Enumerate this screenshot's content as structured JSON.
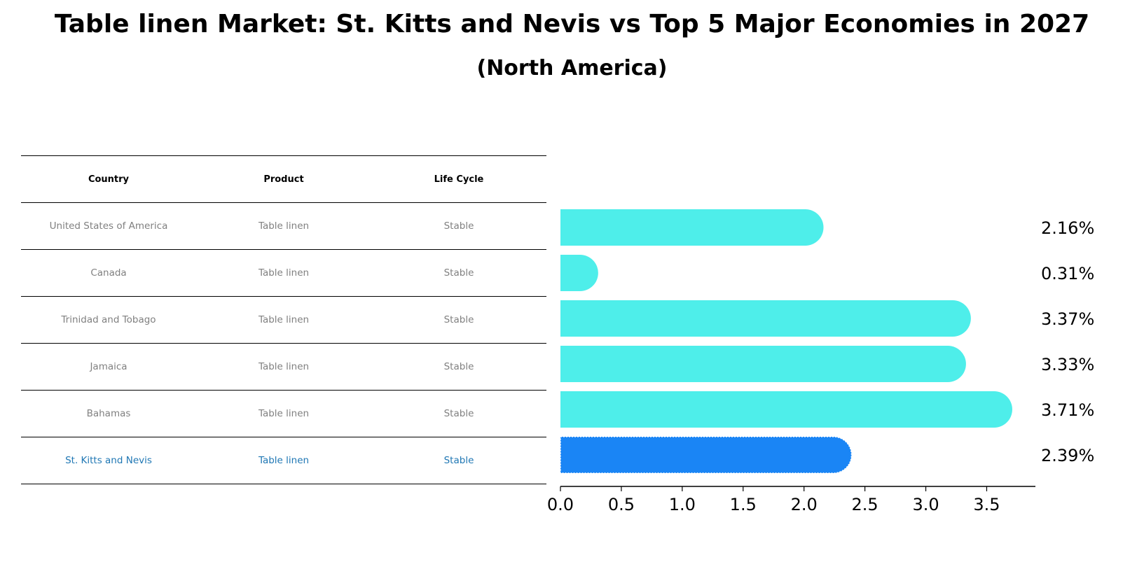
{
  "title": "Table linen Market: St. Kitts and Nevis vs Top 5 Major Economies in 2027",
  "subtitle": "(North America)",
  "table": {
    "headers": [
      "Country",
      "Product",
      "Life Cycle"
    ],
    "rows": [
      {
        "country": "United States of America",
        "product": "Table linen",
        "life_cycle": "Stable"
      },
      {
        "country": "Canada",
        "product": "Table linen",
        "life_cycle": "Stable"
      },
      {
        "country": "Trinidad and Tobago",
        "product": "Table linen",
        "life_cycle": "Stable"
      },
      {
        "country": "Jamaica",
        "product": "Table linen",
        "life_cycle": "Stable"
      },
      {
        "country": "Bahamas",
        "product": "Table linen",
        "life_cycle": "Stable"
      },
      {
        "country": "St. Kitts and Nevis",
        "product": "Table linen",
        "life_cycle": "Stable"
      }
    ],
    "highlight_row": 5
  },
  "colors": {
    "bar": "#4EEEEA",
    "highlight_bar": "#1A85F5",
    "highlight_text": "#1f77b4",
    "row_text": "#808080"
  },
  "chart_data": {
    "type": "bar",
    "orientation": "horizontal",
    "categories": [
      "United States of America",
      "Canada",
      "Trinidad and Tobago",
      "Jamaica",
      "Bahamas",
      "St. Kitts and Nevis"
    ],
    "values": [
      2.16,
      0.31,
      3.37,
      3.33,
      3.71,
      2.39
    ],
    "value_labels": [
      "2.16%",
      "0.31%",
      "3.37%",
      "3.33%",
      "3.71%",
      "2.39%"
    ],
    "highlight_index": 5,
    "xlim": [
      0,
      3.9
    ],
    "xticks": [
      0.0,
      0.5,
      1.0,
      1.5,
      2.0,
      2.5,
      3.0,
      3.5
    ],
    "xtick_labels": [
      "0.0",
      "0.5",
      "1.0",
      "1.5",
      "2.0",
      "2.5",
      "3.0",
      "3.5"
    ],
    "xlabel": "",
    "ylabel": "",
    "grid": false
  }
}
